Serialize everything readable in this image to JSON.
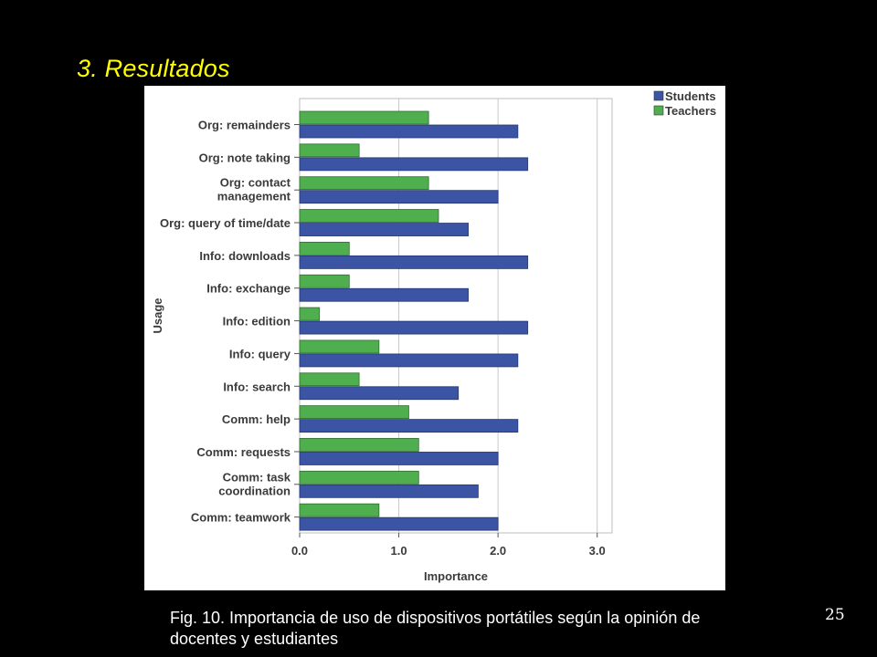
{
  "slide": {
    "title": "3. Resultados",
    "caption": "Fig. 10. Importancia de uso de dispositivos portátiles según la opinión de docentes y estudiantes",
    "page_number": "25"
  },
  "chart_data": {
    "type": "bar",
    "orientation": "horizontal",
    "title": "",
    "xlabel": "Importance",
    "ylabel": "Usage",
    "xlim": [
      0,
      3.15
    ],
    "xticks": [
      "0.0",
      "1.0",
      "2.0",
      "3.0"
    ],
    "xtick_values": [
      0,
      1,
      2,
      3
    ],
    "grid": true,
    "legend_position": "top-right",
    "categories": [
      "Org: remainders",
      "Org: note taking",
      "Org: contact management",
      "Org: query of time/date",
      "Info: downloads",
      "Info: exchange",
      "Info: edition",
      "Info: query",
      "Info: search",
      "Comm: help",
      "Comm: requests",
      "Comm: task coordination",
      "Comm: teamwork"
    ],
    "series": [
      {
        "name": "Students",
        "color": "#3b54a4",
        "values": [
          2.2,
          2.3,
          2.0,
          1.7,
          2.3,
          1.7,
          2.3,
          2.2,
          1.6,
          2.2,
          2.0,
          1.8,
          2.0
        ]
      },
      {
        "name": "Teachers",
        "color": "#4faf4f",
        "values": [
          1.3,
          0.6,
          1.3,
          1.4,
          0.5,
          0.5,
          0.2,
          0.8,
          0.6,
          1.1,
          1.2,
          1.2,
          0.8
        ]
      }
    ]
  }
}
